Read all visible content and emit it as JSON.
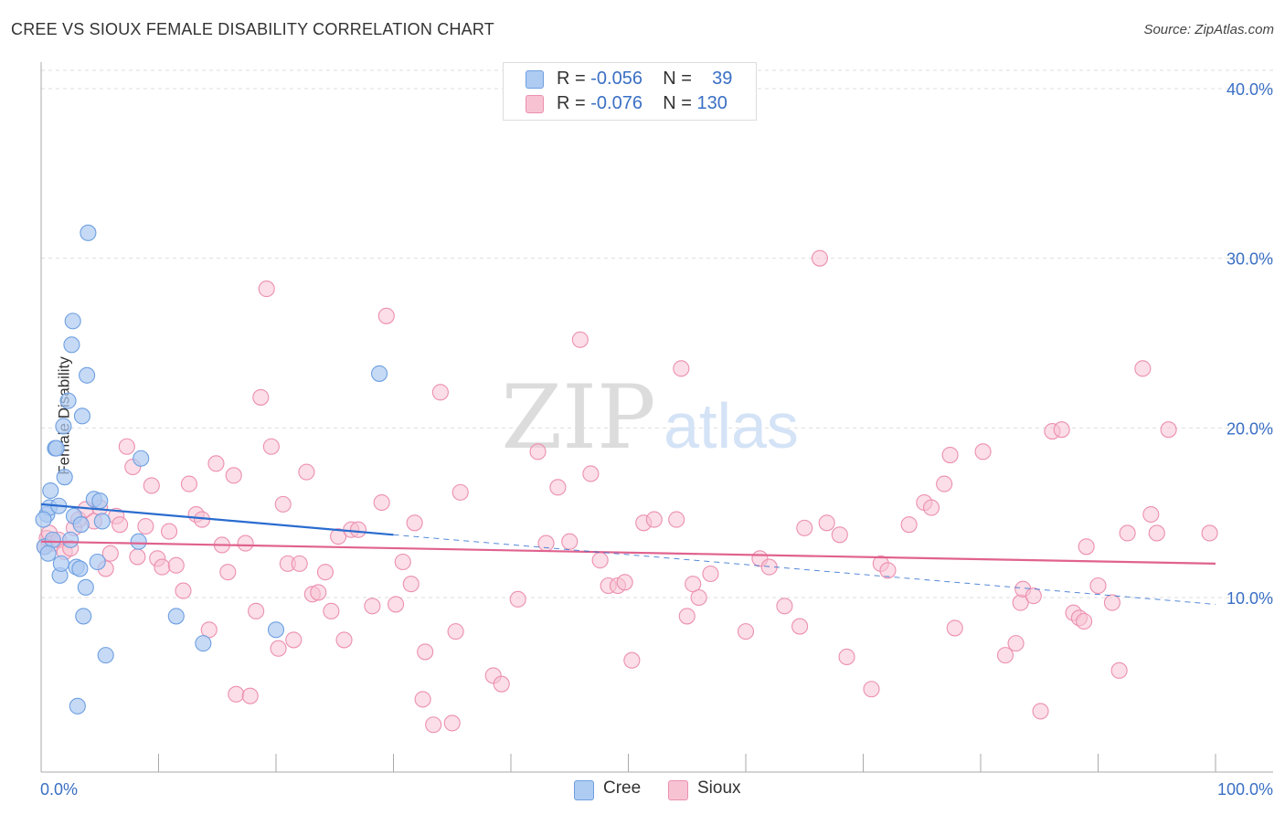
{
  "header": {
    "title": "CREE VS SIOUX FEMALE DISABILITY CORRELATION CHART",
    "source": "Source: ZipAtlas.com"
  },
  "watermark": {
    "zip": "ZIP",
    "atlas": "atlas"
  },
  "legend": {
    "rows": [
      {
        "r_label": "R =",
        "r_value": "-0.056",
        "n_label": "N =",
        "n_value": "39"
      },
      {
        "r_label": "R =",
        "r_value": "-0.076",
        "n_label": "N =",
        "n_value": "130"
      }
    ]
  },
  "colors": {
    "cree_fill": "#aecbf2",
    "cree_stroke": "#6e9fe0",
    "cree_line": "#2a6ccf",
    "sioux_fill": "#f7c3d3",
    "sioux_stroke": "#ec8fb0",
    "sioux_line": "#e0628e",
    "axis_tick_color": "#3a6fc4"
  },
  "chart_data": {
    "type": "scatter",
    "title": "CREE VS SIOUX FEMALE DISABILITY CORRELATION CHART",
    "xlabel": "",
    "ylabel": "Female Disability",
    "xlim": [
      0,
      100
    ],
    "ylim": [
      0,
      40
    ],
    "x_tick_labels": [
      "0.0%",
      "100.0%"
    ],
    "y_ticks": [
      10,
      20,
      30,
      40
    ],
    "y_tick_labels": [
      "10.0%",
      "20.0%",
      "30.0%",
      "40.0%"
    ],
    "grid": true,
    "legend_position": "top-center",
    "series": [
      {
        "name": "Cree",
        "r": -0.056,
        "n": 39,
        "trend": {
          "x0": 0,
          "y0": 15.5,
          "x1": 30,
          "y1": 13.7,
          "dashed_to_x": 100,
          "dashed_to_y": 9.6
        },
        "points": [
          [
            0.3,
            13.0
          ],
          [
            0.5,
            14.9
          ],
          [
            0.7,
            15.3
          ],
          [
            0.8,
            16.3
          ],
          [
            1.0,
            13.4
          ],
          [
            1.2,
            18.8
          ],
          [
            1.3,
            18.8
          ],
          [
            1.5,
            15.4
          ],
          [
            1.6,
            11.3
          ],
          [
            1.7,
            12.0
          ],
          [
            1.9,
            20.1
          ],
          [
            2.0,
            17.1
          ],
          [
            2.3,
            21.6
          ],
          [
            2.5,
            13.4
          ],
          [
            2.6,
            24.9
          ],
          [
            2.7,
            26.3
          ],
          [
            2.8,
            14.8
          ],
          [
            3.0,
            11.8
          ],
          [
            3.1,
            3.6
          ],
          [
            3.3,
            11.7
          ],
          [
            3.4,
            14.3
          ],
          [
            3.5,
            20.7
          ],
          [
            3.6,
            8.9
          ],
          [
            3.8,
            10.6
          ],
          [
            3.9,
            23.1
          ],
          [
            4.0,
            31.5
          ],
          [
            4.5,
            15.8
          ],
          [
            4.8,
            12.1
          ],
          [
            5.0,
            15.7
          ],
          [
            5.2,
            14.5
          ],
          [
            5.5,
            6.6
          ],
          [
            8.3,
            13.3
          ],
          [
            8.5,
            18.2
          ],
          [
            11.5,
            8.9
          ],
          [
            13.8,
            7.3
          ],
          [
            20.0,
            8.1
          ],
          [
            28.8,
            23.2
          ],
          [
            0.2,
            14.6
          ],
          [
            0.6,
            12.6
          ]
        ]
      },
      {
        "name": "Sioux",
        "r": -0.076,
        "n": 130,
        "trend": {
          "x0": 0,
          "y0": 13.3,
          "x1": 100,
          "y1": 12.0
        },
        "points": [
          [
            0.3,
            13.0
          ],
          [
            0.5,
            13.5
          ],
          [
            0.7,
            13.8
          ],
          [
            1.0,
            13.2
          ],
          [
            1.5,
            13.4
          ],
          [
            2.0,
            12.7
          ],
          [
            2.5,
            12.9
          ],
          [
            2.8,
            14.1
          ],
          [
            3.2,
            14.6
          ],
          [
            3.8,
            15.2
          ],
          [
            4.5,
            14.5
          ],
          [
            5.0,
            15.3
          ],
          [
            5.5,
            11.7
          ],
          [
            5.9,
            12.6
          ],
          [
            6.4,
            14.8
          ],
          [
            6.7,
            14.3
          ],
          [
            7.3,
            18.9
          ],
          [
            7.8,
            17.7
          ],
          [
            8.2,
            12.4
          ],
          [
            8.9,
            14.2
          ],
          [
            9.4,
            16.6
          ],
          [
            9.9,
            12.3
          ],
          [
            10.3,
            11.8
          ],
          [
            10.9,
            13.9
          ],
          [
            11.5,
            11.9
          ],
          [
            12.1,
            10.4
          ],
          [
            12.6,
            16.7
          ],
          [
            13.2,
            14.9
          ],
          [
            13.7,
            14.6
          ],
          [
            14.3,
            8.1
          ],
          [
            14.9,
            17.9
          ],
          [
            15.4,
            13.1
          ],
          [
            15.9,
            11.5
          ],
          [
            16.4,
            17.2
          ],
          [
            16.6,
            4.3
          ],
          [
            17.4,
            13.2
          ],
          [
            17.8,
            4.2
          ],
          [
            18.3,
            9.2
          ],
          [
            18.7,
            21.8
          ],
          [
            19.2,
            28.2
          ],
          [
            19.6,
            18.9
          ],
          [
            20.2,
            7.0
          ],
          [
            20.6,
            15.5
          ],
          [
            21.0,
            12.0
          ],
          [
            21.5,
            7.5
          ],
          [
            22.0,
            12.0
          ],
          [
            22.6,
            17.4
          ],
          [
            23.1,
            10.2
          ],
          [
            23.6,
            10.3
          ],
          [
            24.2,
            11.5
          ],
          [
            24.7,
            9.2
          ],
          [
            25.3,
            13.6
          ],
          [
            25.8,
            7.5
          ],
          [
            26.4,
            14.0
          ],
          [
            27.0,
            14.0
          ],
          [
            28.2,
            9.5
          ],
          [
            29.0,
            15.6
          ],
          [
            29.4,
            26.6
          ],
          [
            30.2,
            9.6
          ],
          [
            30.8,
            12.1
          ],
          [
            31.5,
            10.8
          ],
          [
            31.8,
            14.4
          ],
          [
            32.5,
            4.0
          ],
          [
            32.7,
            6.8
          ],
          [
            33.4,
            2.5
          ],
          [
            34.0,
            22.1
          ],
          [
            35.0,
            2.6
          ],
          [
            35.3,
            8.0
          ],
          [
            35.7,
            16.2
          ],
          [
            38.5,
            5.4
          ],
          [
            39.2,
            4.9
          ],
          [
            40.6,
            9.9
          ],
          [
            42.3,
            18.6
          ],
          [
            43.0,
            13.2
          ],
          [
            44.0,
            16.5
          ],
          [
            45.0,
            13.3
          ],
          [
            45.9,
            25.2
          ],
          [
            46.8,
            17.3
          ],
          [
            47.6,
            12.2
          ],
          [
            48.3,
            10.7
          ],
          [
            49.1,
            10.7
          ],
          [
            49.7,
            10.9
          ],
          [
            50.3,
            6.3
          ],
          [
            51.3,
            14.4
          ],
          [
            52.2,
            14.6
          ],
          [
            54.1,
            14.6
          ],
          [
            54.5,
            23.5
          ],
          [
            55.0,
            8.9
          ],
          [
            55.5,
            10.8
          ],
          [
            56.0,
            10.0
          ],
          [
            57.0,
            11.4
          ],
          [
            60.0,
            8.0
          ],
          [
            61.2,
            12.3
          ],
          [
            62.0,
            11.8
          ],
          [
            63.3,
            9.5
          ],
          [
            64.6,
            8.3
          ],
          [
            65.0,
            14.1
          ],
          [
            66.3,
            30.0
          ],
          [
            66.9,
            14.4
          ],
          [
            68.0,
            13.7
          ],
          [
            68.6,
            6.5
          ],
          [
            70.7,
            4.6
          ],
          [
            71.5,
            12.0
          ],
          [
            72.1,
            11.6
          ],
          [
            73.9,
            14.3
          ],
          [
            75.2,
            15.6
          ],
          [
            75.8,
            15.3
          ],
          [
            76.9,
            16.7
          ],
          [
            77.4,
            18.4
          ],
          [
            77.8,
            8.2
          ],
          [
            80.2,
            18.6
          ],
          [
            82.1,
            6.6
          ],
          [
            83.0,
            7.3
          ],
          [
            83.4,
            9.7
          ],
          [
            83.6,
            10.5
          ],
          [
            84.5,
            10.1
          ],
          [
            85.1,
            3.3
          ],
          [
            86.1,
            19.8
          ],
          [
            86.9,
            19.9
          ],
          [
            87.9,
            9.1
          ],
          [
            88.4,
            8.8
          ],
          [
            88.8,
            8.6
          ],
          [
            89.0,
            13.0
          ],
          [
            90.0,
            10.7
          ],
          [
            91.2,
            9.7
          ],
          [
            91.8,
            5.7
          ],
          [
            92.5,
            13.8
          ],
          [
            93.8,
            23.5
          ],
          [
            94.5,
            14.9
          ],
          [
            95.0,
            13.8
          ],
          [
            96.0,
            19.9
          ],
          [
            99.5,
            13.8
          ]
        ]
      }
    ]
  }
}
